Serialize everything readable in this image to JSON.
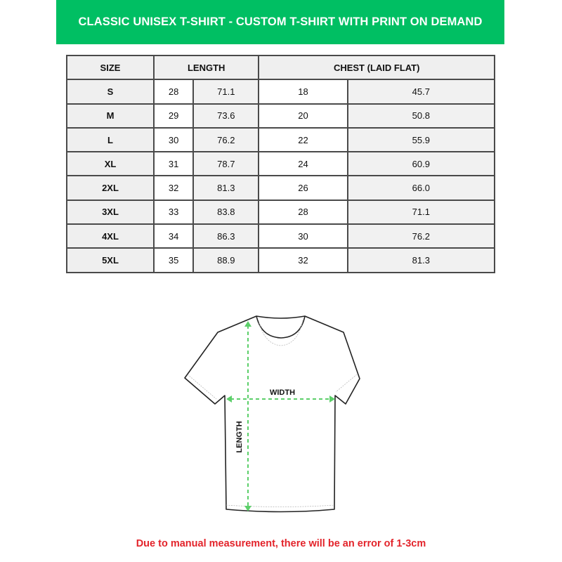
{
  "title": "CLASSIC UNISEX T-SHIRT - CUSTOM T-SHIRT WITH PRINT ON DEMAND",
  "colors": {
    "banner": "#00bf63",
    "note": "#e3242b",
    "arrow": "#5ccf6a"
  },
  "table": {
    "headers": [
      "SIZE",
      "LENGTH",
      "CHEST (LAID FLAT)"
    ],
    "rows": [
      {
        "size": "S",
        "length_in": "28",
        "length_cm": "71.1",
        "chest_in": "18",
        "chest_cm": "45.7"
      },
      {
        "size": "M",
        "length_in": "29",
        "length_cm": "73.6",
        "chest_in": "20",
        "chest_cm": "50.8"
      },
      {
        "size": "L",
        "length_in": "30",
        "length_cm": "76.2",
        "chest_in": "22",
        "chest_cm": "55.9"
      },
      {
        "size": "XL",
        "length_in": "31",
        "length_cm": "78.7",
        "chest_in": "24",
        "chest_cm": "60.9"
      },
      {
        "size": "2XL",
        "length_in": "32",
        "length_cm": "81.3",
        "chest_in": "26",
        "chest_cm": "66.0"
      },
      {
        "size": "3XL",
        "length_in": "33",
        "length_cm": "83.8",
        "chest_in": "28",
        "chest_cm": "71.1"
      },
      {
        "size": "4XL",
        "length_in": "34",
        "length_cm": "86.3",
        "chest_in": "30",
        "chest_cm": "76.2"
      },
      {
        "size": "5XL",
        "length_in": "35",
        "length_cm": "88.9",
        "chest_in": "32",
        "chest_cm": "81.3"
      }
    ]
  },
  "diagram": {
    "width_label": "WIDTH",
    "length_label": "LENGTH"
  },
  "note": "Due to manual measurement, there will be an error of 1-3cm"
}
